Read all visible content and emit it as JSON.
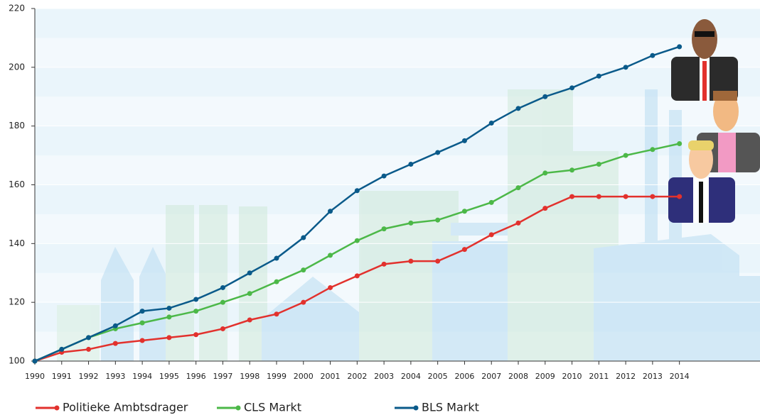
{
  "chart_data": {
    "type": "line",
    "x": [
      1990,
      1991,
      1992,
      1993,
      1994,
      1995,
      1996,
      1997,
      1998,
      1999,
      2000,
      2001,
      2002,
      2003,
      2004,
      2005,
      2006,
      2007,
      2008,
      2009,
      2010,
      2011,
      2012,
      2013,
      2014
    ],
    "xlim": [
      1990,
      2017
    ],
    "xticks": [
      1990,
      1991,
      1992,
      1993,
      1994,
      1995,
      1996,
      1997,
      1998,
      1999,
      2000,
      2001,
      2002,
      2003,
      2004,
      2005,
      2006,
      2007,
      2008,
      2009,
      2010,
      2011,
      2012,
      2013,
      2014
    ],
    "ylim": [
      100,
      220
    ],
    "yticks": [
      100,
      120,
      140,
      160,
      180,
      200,
      220
    ],
    "grid": true,
    "series": [
      {
        "name": "Politieke Ambtsdrager",
        "color": "#e2312d",
        "values": [
          100,
          103,
          104,
          106,
          107,
          108,
          109,
          111,
          114,
          116,
          120,
          125,
          129,
          133,
          134,
          134,
          138,
          143,
          147,
          152,
          156,
          156,
          156,
          156,
          156
        ]
      },
      {
        "name": "CLS Markt",
        "color": "#4cb848",
        "values": [
          100,
          104,
          108,
          111,
          113,
          115,
          117,
          120,
          123,
          127,
          131,
          136,
          141,
          145,
          147,
          148,
          151,
          154,
          159,
          164,
          165,
          167,
          170,
          172,
          174
        ]
      },
      {
        "name": "BLS Markt",
        "color": "#0a5a8a",
        "values": [
          100,
          104,
          108,
          112,
          117,
          118,
          121,
          125,
          130,
          135,
          142,
          151,
          158,
          163,
          167,
          171,
          175,
          181,
          186,
          190,
          193,
          197,
          200,
          204,
          207
        ]
      }
    ]
  }
}
